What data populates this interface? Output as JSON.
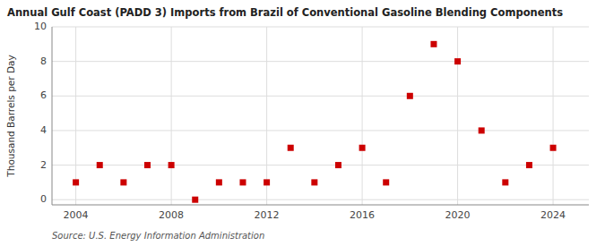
{
  "chart_data": {
    "type": "scatter",
    "title": "Annual Gulf Coast (PADD 3) Imports from Brazil of Conventional Gasoline Blending Components",
    "ylabel": "Thousand Barrels per Day",
    "source": "Source: U.S. Energy Information Administration",
    "x": [
      2004,
      2005,
      2006,
      2007,
      2008,
      2009,
      2010,
      2011,
      2012,
      2013,
      2014,
      2015,
      2016,
      2017,
      2018,
      2019,
      2020,
      2021,
      2022,
      2023,
      2024
    ],
    "values": [
      1,
      2,
      1,
      2,
      2,
      0,
      1,
      1,
      1,
      3,
      1,
      2,
      3,
      1,
      6,
      9,
      8,
      4,
      1,
      2,
      3
    ],
    "color": "#cc0000",
    "marker": "square",
    "xlim": [
      2003.0,
      2025.5
    ],
    "ylim": [
      -0.3,
      10
    ],
    "xticks": [
      2004,
      2008,
      2012,
      2016,
      2020,
      2024
    ],
    "yticks": [
      0,
      2,
      4,
      6,
      8,
      10
    ],
    "grid": true
  }
}
